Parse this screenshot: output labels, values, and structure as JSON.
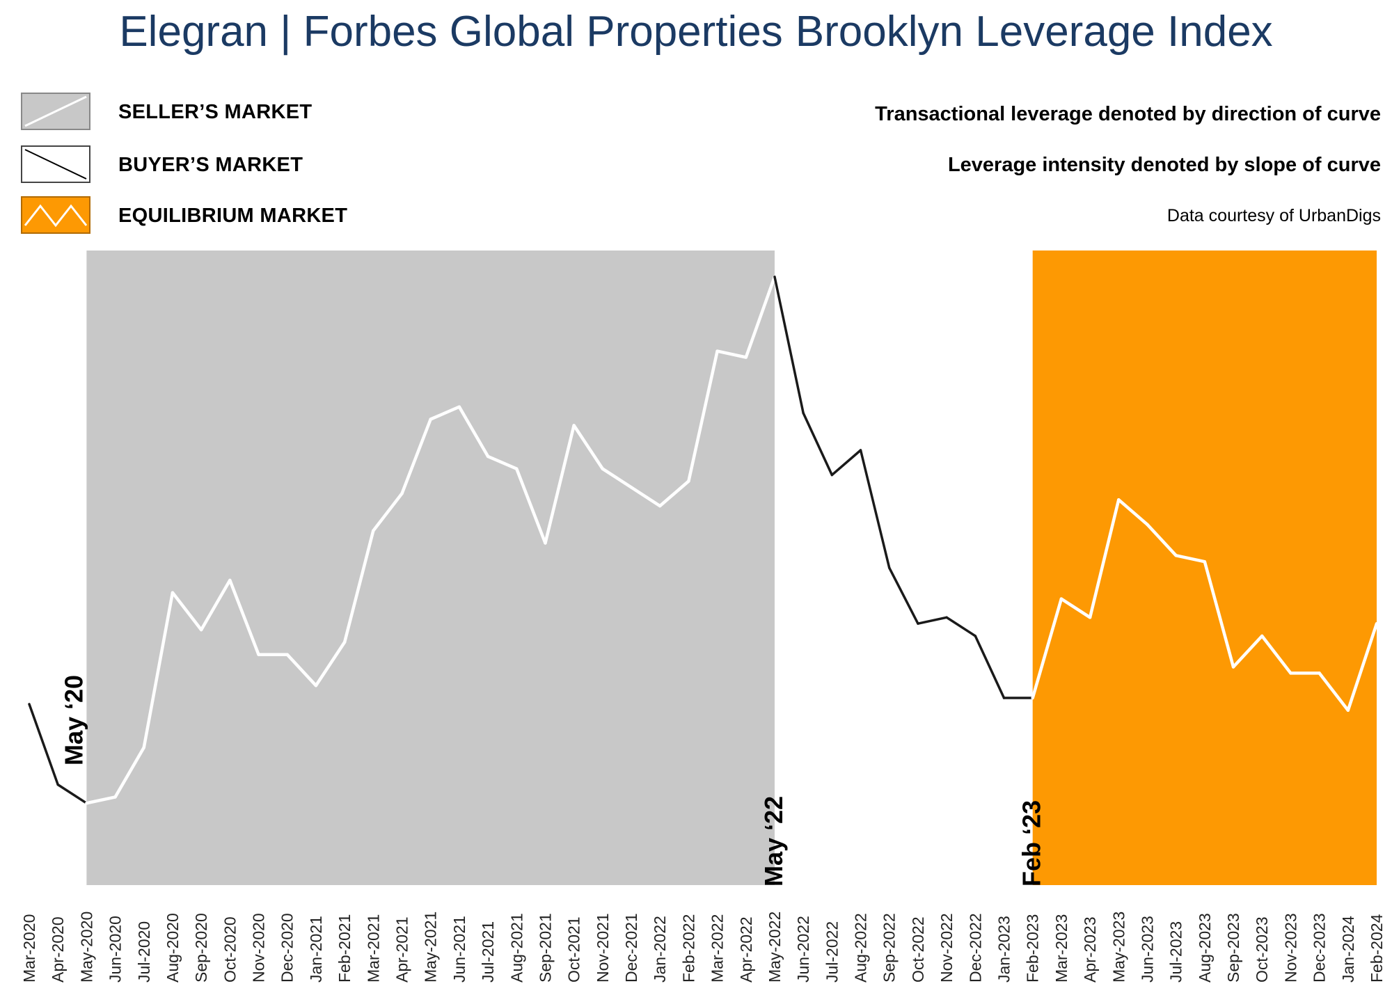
{
  "title": {
    "part1": "Elegran | Forbes Global Properties",
    "part2": "Brooklyn Leverage Index"
  },
  "legend": [
    {
      "label": "SELLER’S MARKET",
      "fill": "#c8c8c8",
      "line": "#ffffff"
    },
    {
      "label": "BUYER’S MARKET",
      "fill": "#ffffff",
      "line": "#000000"
    },
    {
      "label": "EQUILIBRIUM MARKET",
      "fill": "#fd9903",
      "line": "#ffffff"
    }
  ],
  "notes": {
    "direction": "Transactional leverage denoted by direction of curve",
    "slope": "Leverage intensity denoted by slope of curve",
    "source": "Data courtesy of UrbanDigs"
  },
  "colors": {
    "seller": "#c8c8c8",
    "equilibrium": "#fd9903",
    "title": "#1b3a63"
  },
  "chart_data": {
    "type": "line",
    "x": [
      "Mar-2020",
      "Apr-2020",
      "May-2020",
      "Jun-2020",
      "Jul-2020",
      "Aug-2020",
      "Sep-2020",
      "Oct-2020",
      "Nov-2020",
      "Dec-2020",
      "Jan-2021",
      "Feb-2021",
      "Mar-2021",
      "Apr-2021",
      "May-2021",
      "Jun-2021",
      "Jul-2021",
      "Aug-2021",
      "Sep-2021",
      "Oct-2021",
      "Nov-2021",
      "Dec-2021",
      "Jan-2022",
      "Feb-2022",
      "Mar-2022",
      "Apr-2022",
      "May-2022",
      "Jun-2022",
      "Jul-2022",
      "Aug-2022",
      "Sep-2022",
      "Oct-2022",
      "Nov-2022",
      "Dec-2022",
      "Jan-2023",
      "Feb-2023",
      "Mar-2023",
      "Apr-2023",
      "May-2023",
      "Jun-2023",
      "Jul-2023",
      "Aug-2023",
      "Sep-2023",
      "Oct-2023",
      "Nov-2023",
      "Dec-2023",
      "Jan-2024",
      "Feb-2024"
    ],
    "values": [
      29,
      16,
      13,
      14,
      22,
      47,
      41,
      49,
      37,
      37,
      32,
      39,
      57,
      63,
      75,
      77,
      69,
      67,
      55,
      74,
      67,
      64,
      61,
      65,
      86,
      85,
      98,
      76,
      66,
      70,
      51,
      42,
      43,
      40,
      30,
      30,
      46,
      43,
      62,
      58,
      53,
      52,
      35,
      40,
      34,
      34,
      28,
      42
    ],
    "ylim": [
      0,
      100
    ],
    "regions": [
      {
        "type": "seller",
        "start": "May-2020",
        "end": "May-2022"
      },
      {
        "type": "equilibrium",
        "start": "Feb-2023",
        "end": "Feb-2024"
      }
    ],
    "annotations": [
      {
        "text": "May ‘20",
        "at": "May-2020"
      },
      {
        "text": "May ‘22",
        "at": "May-2022"
      },
      {
        "text": "Feb ‘23",
        "at": "Feb-2023"
      }
    ],
    "grid": false,
    "legend_position": "top-left"
  }
}
